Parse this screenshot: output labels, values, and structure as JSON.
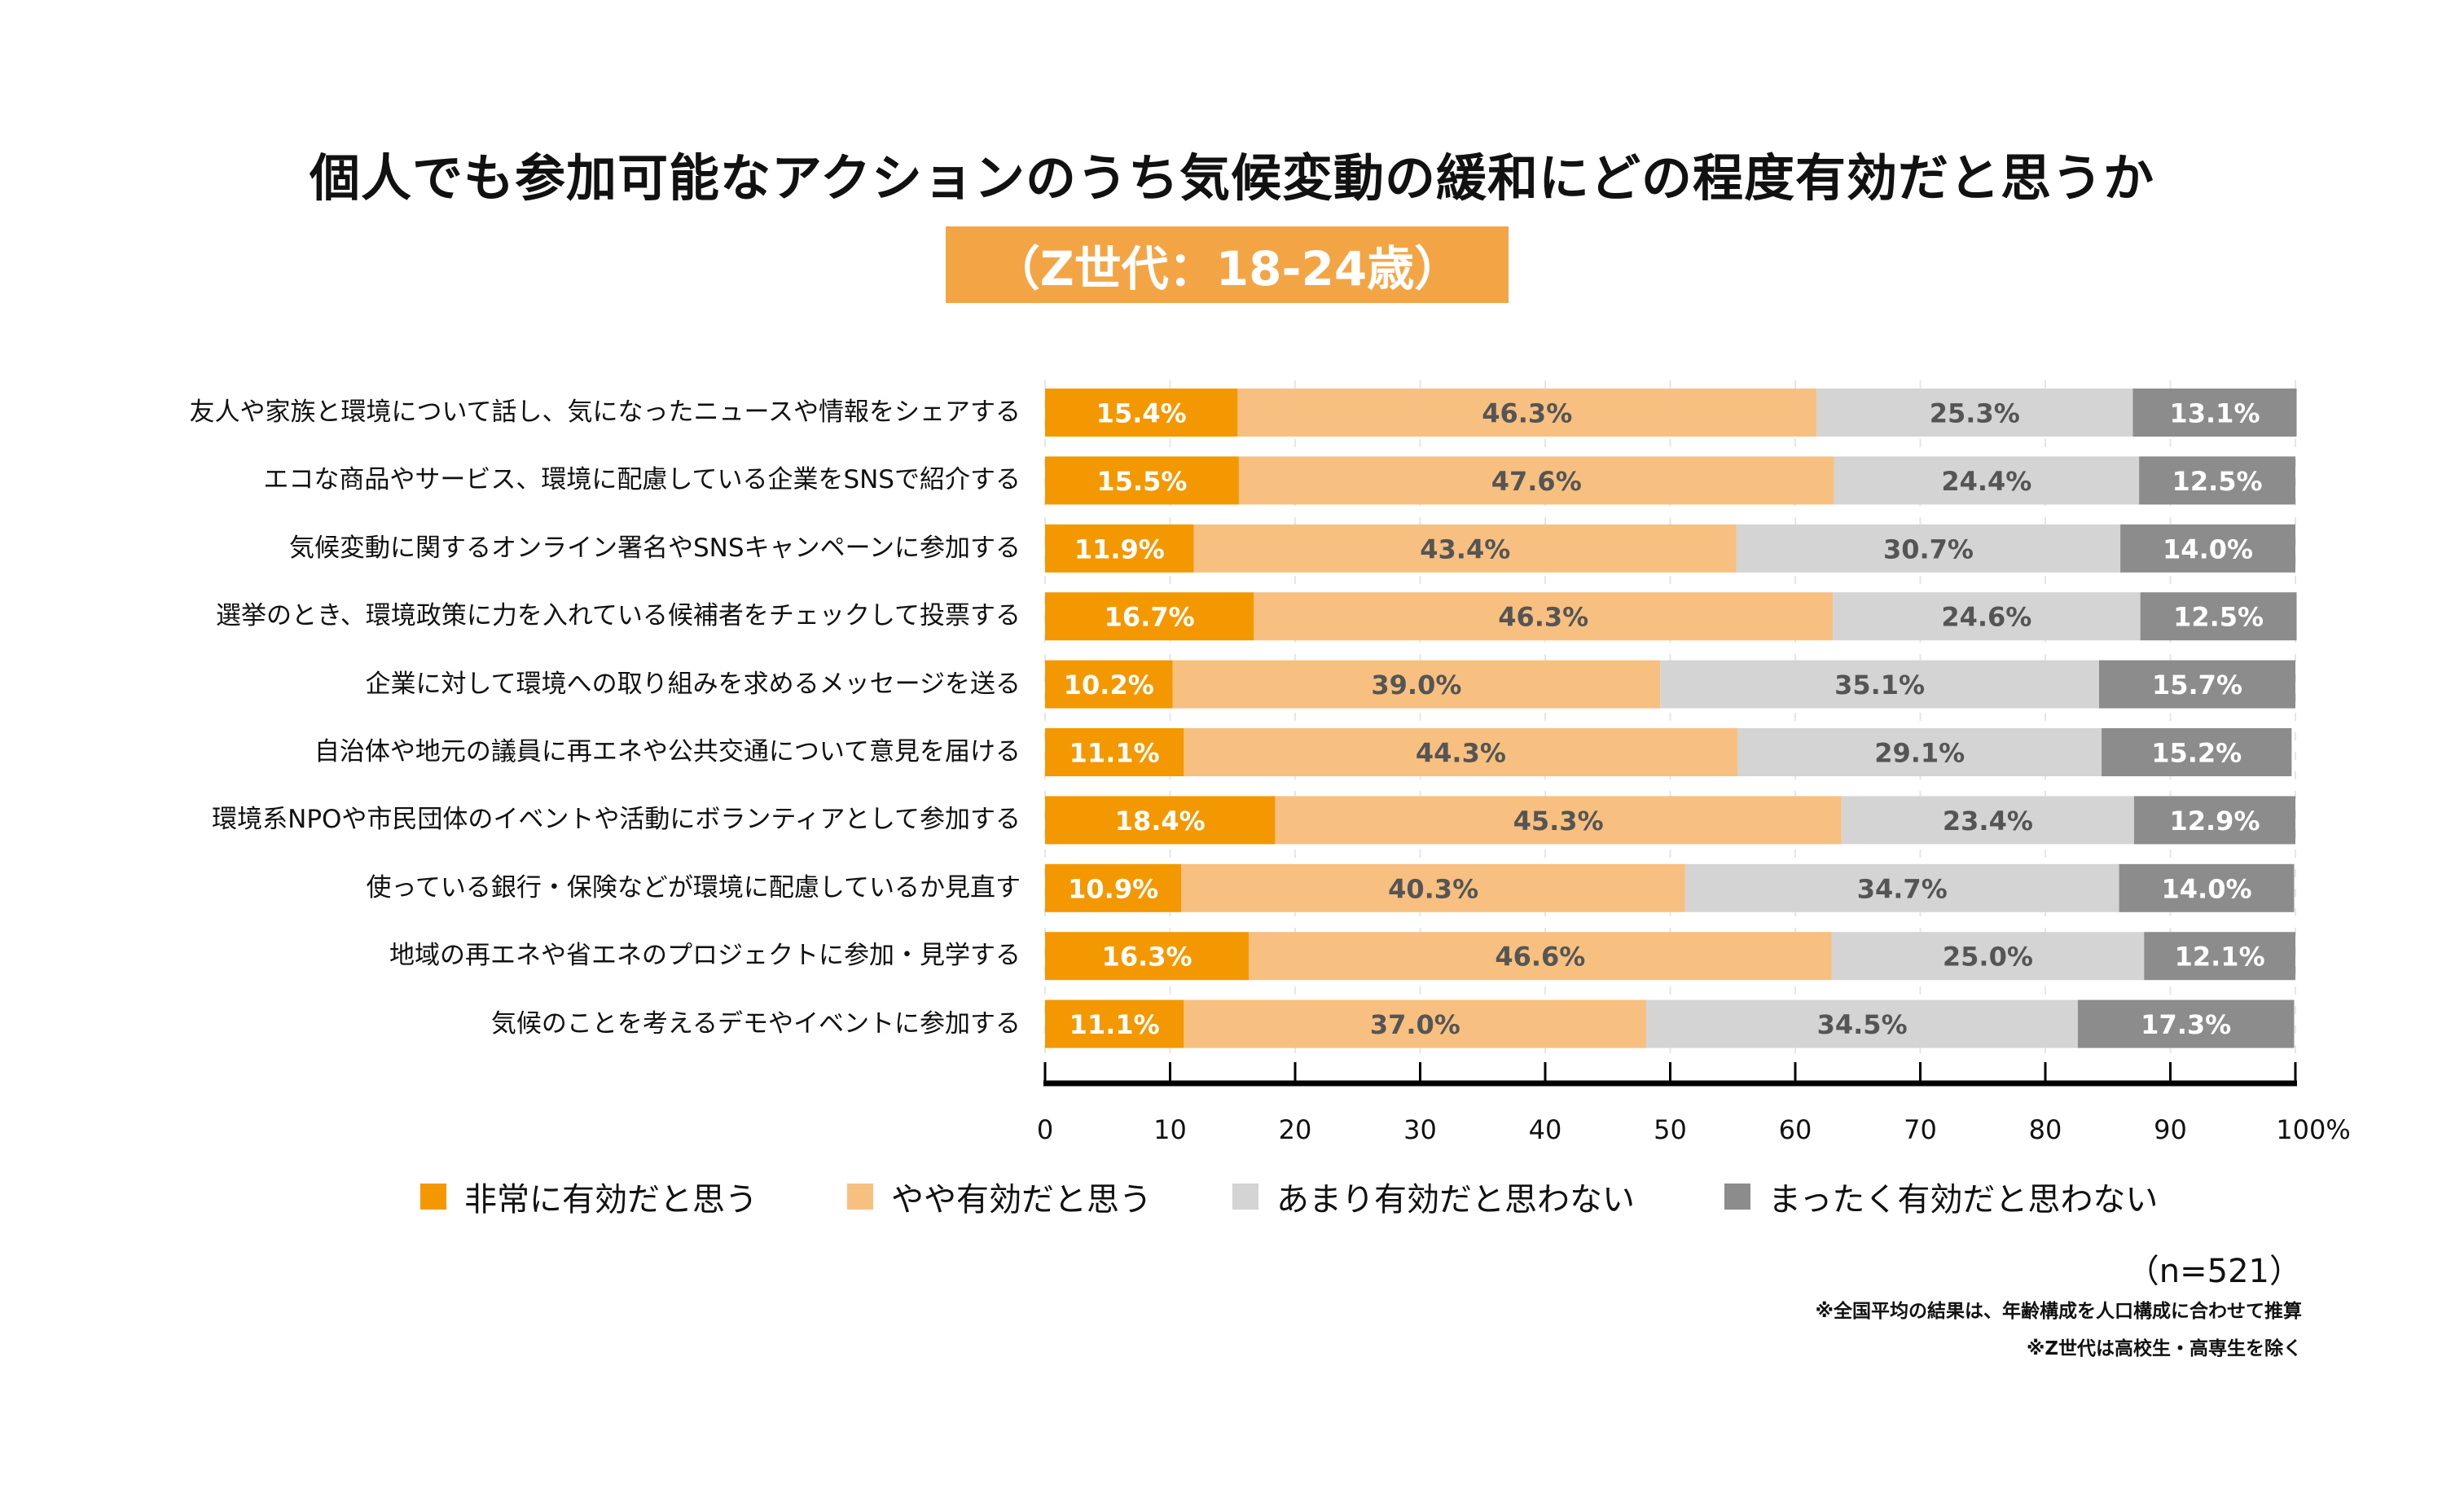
{
  "chart_data": {
    "type": "bar",
    "orientation": "horizontal",
    "stacked": true,
    "title": "個人でも参加可能なアクションのうち気候変動の緩和にどの程度有効だと思うか",
    "subtitle": "（Z世代：18-24歳）",
    "xlabel": "",
    "ylabel": "",
    "xlim": [
      0,
      100
    ],
    "x_ticks": [
      "0",
      "10",
      "20",
      "30",
      "40",
      "50",
      "60",
      "70",
      "80",
      "90",
      "100%"
    ],
    "grid": true,
    "legend_position": "bottom",
    "categories": [
      "友人や家族と環境について話し、気になったニュースや情報をシェアする",
      "エコな商品やサービス、環境に配慮している企業をSNSで紹介する",
      "気候変動に関するオンライン署名やSNSキャンペーンに参加する",
      "選挙のとき、環境政策に力を入れている候補者をチェックして投票する",
      "企業に対して環境への取り組みを求めるメッセージを送る",
      "自治体や地元の議員に再エネや公共交通について意見を届ける",
      "環境系NPOや市民団体のイベントや活動にボランティアとして参加する",
      "使っている銀行・保険などが環境に配慮しているか見直す",
      "地域の再エネや省エネのプロジェクトに参加・見学する",
      "気候のことを考えるデモやイベントに参加する"
    ],
    "series": [
      {
        "name": "非常に有効だと思う",
        "color": "#F39800",
        "label_color": "#FFFFFF",
        "values": [
          15.4,
          15.5,
          11.9,
          16.7,
          10.2,
          11.1,
          18.4,
          10.9,
          16.3,
          11.1
        ]
      },
      {
        "name": "やや有効だと思う",
        "color": "#F7C080",
        "label_color": "#555555",
        "values": [
          46.3,
          47.6,
          43.4,
          46.3,
          39.0,
          44.3,
          45.3,
          40.3,
          46.6,
          37.0
        ]
      },
      {
        "name": "あまり有効だと思わない",
        "color": "#D4D4D4",
        "label_color": "#555555",
        "values": [
          25.3,
          24.4,
          30.7,
          24.6,
          35.1,
          29.1,
          23.4,
          34.7,
          25.0,
          34.5
        ]
      },
      {
        "name": "まったく有効だと思わない",
        "color": "#8C8C8C",
        "label_color": "#FFFFFF",
        "values": [
          13.1,
          12.5,
          14.0,
          12.5,
          15.7,
          15.2,
          12.9,
          14.0,
          12.1,
          17.3
        ]
      }
    ]
  },
  "badge_color": "#F3A545",
  "sample_size": "（n=521）",
  "notes": [
    "※全国平均の結果は、年齢構成を人口構成に合わせて推算",
    "※Z世代は高校生・高専生を除く"
  ]
}
